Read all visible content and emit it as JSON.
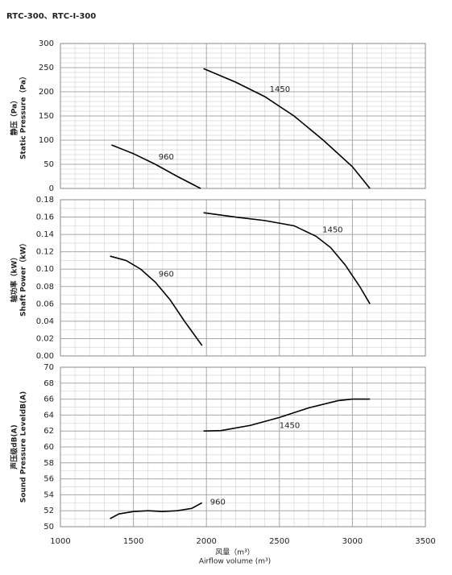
{
  "chart_data": [
    {
      "type": "line",
      "title": "RTC-300、RTC-I-300",
      "ylabel": [
        "静压（Pa）",
        "Static Pressure（Pa）"
      ],
      "xlim": [
        1000,
        3500
      ],
      "xticks": [
        1000,
        1500,
        2000,
        2500,
        3000,
        3500
      ],
      "ylim": [
        0,
        300
      ],
      "yticks": [
        0,
        50,
        100,
        150,
        200,
        250,
        300
      ],
      "grid": true,
      "series": [
        {
          "name": "960",
          "color": "#000000",
          "x": [
            1350,
            1500,
            1650,
            1800,
            1960
          ],
          "values": [
            90,
            72,
            50,
            25,
            0
          ]
        },
        {
          "name": "1450",
          "color": "#000000",
          "x": [
            1980,
            2200,
            2400,
            2600,
            2800,
            3000,
            3120
          ],
          "values": [
            248,
            220,
            190,
            150,
            100,
            45,
            0
          ]
        }
      ]
    },
    {
      "type": "line",
      "ylabel": [
        "轴功率（kW）",
        "Shaft Power（kW）"
      ],
      "xlim": [
        1000,
        3500
      ],
      "xticks": [
        1000,
        1500,
        2000,
        2500,
        3000,
        3500
      ],
      "ylim": [
        0,
        0.18
      ],
      "yticks": [
        {
          "value": 0,
          "label": "0.00"
        },
        {
          "value": 0.02,
          "label": "0.02"
        },
        {
          "value": 0.04,
          "label": "0.04"
        },
        {
          "value": 0.06,
          "label": "0.06"
        },
        {
          "value": 0.08,
          "label": "0.08"
        },
        {
          "value": 0.1,
          "label": "0.10"
        },
        {
          "value": 0.12,
          "label": "0.12"
        },
        {
          "value": 0.14,
          "label": "0.14"
        },
        {
          "value": 0.16,
          "label": "0.16"
        },
        {
          "value": 0.18,
          "label": "0.18"
        }
      ],
      "grid": true,
      "series": [
        {
          "name": "960",
          "color": "#000000",
          "x": [
            1340,
            1450,
            1550,
            1650,
            1750,
            1850,
            1970
          ],
          "values": [
            0.115,
            0.11,
            0.1,
            0.085,
            0.065,
            0.04,
            0.012
          ]
        },
        {
          "name": "1450",
          "color": "#000000",
          "x": [
            1980,
            2200,
            2400,
            2600,
            2750,
            2850,
            2950,
            3050,
            3120
          ],
          "values": [
            0.165,
            0.16,
            0.156,
            0.15,
            0.138,
            0.125,
            0.105,
            0.08,
            0.06
          ]
        }
      ]
    },
    {
      "type": "line",
      "ylabel": [
        "声压级dB(A)",
        "Sound Pressure LeveldB(A)"
      ],
      "xlabel": [
        "风量（m³）",
        "Airflow volume (m³)"
      ],
      "xlim": [
        1000,
        3500
      ],
      "xticks": [
        1000,
        1500,
        2000,
        2500,
        3000,
        3500
      ],
      "ylim": [
        50,
        70
      ],
      "yticks": [
        50,
        52,
        54,
        56,
        58,
        60,
        62,
        64,
        66,
        68,
        70
      ],
      "grid": true,
      "series": [
        {
          "name": "960",
          "color": "#000000",
          "x": [
            1340,
            1400,
            1500,
            1600,
            1700,
            1800,
            1900,
            1970
          ],
          "values": [
            51,
            51.6,
            51.9,
            52,
            51.9,
            52,
            52.3,
            53
          ]
        },
        {
          "name": "1450",
          "color": "#000000",
          "x": [
            1980,
            2100,
            2300,
            2500,
            2700,
            2900,
            3000,
            3120
          ],
          "values": [
            62,
            62.05,
            62.7,
            63.7,
            64.9,
            65.8,
            66,
            66
          ]
        }
      ]
    }
  ]
}
